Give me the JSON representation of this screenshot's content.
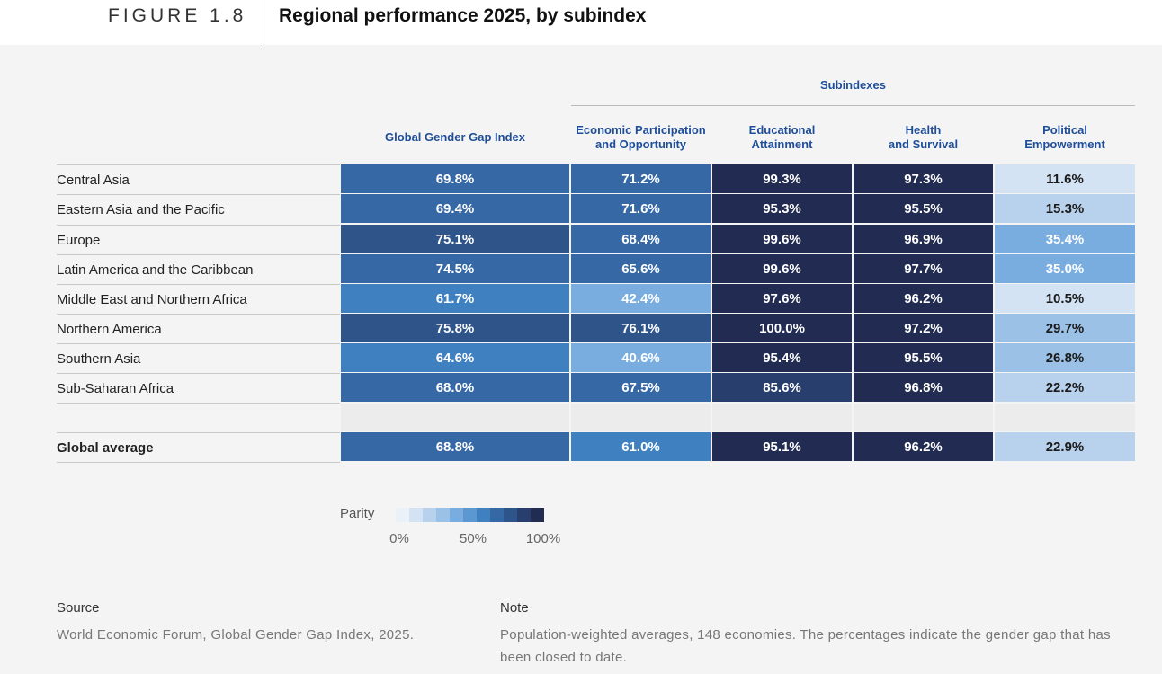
{
  "figure": {
    "label": "FIGURE 1.8",
    "title": "Regional performance 2025, by subindex"
  },
  "subindexes_label": "Subindexes",
  "chart_data": {
    "type": "table",
    "columns": [
      "Global Gender Gap Index",
      "Economic Participation\nand Opportunity",
      "Educational\nAttainment",
      "Health\nand Survival",
      "Political\nEmpowerment"
    ],
    "rows": [
      {
        "label": "Central Asia",
        "values": [
          69.8,
          71.2,
          99.3,
          97.3,
          11.6
        ]
      },
      {
        "label": "Eastern Asia and the Pacific",
        "values": [
          69.4,
          71.6,
          95.3,
          95.5,
          15.3
        ]
      },
      {
        "label": "Europe",
        "values": [
          75.1,
          68.4,
          99.6,
          96.9,
          35.4
        ]
      },
      {
        "label": "Latin America and the Caribbean",
        "values": [
          74.5,
          65.6,
          99.6,
          97.7,
          35.0
        ]
      },
      {
        "label": "Middle East and Northern Africa",
        "values": [
          61.7,
          42.4,
          97.6,
          96.2,
          10.5
        ]
      },
      {
        "label": "Northern America",
        "values": [
          75.8,
          76.1,
          100.0,
          97.2,
          29.7
        ]
      },
      {
        "label": "Southern Asia",
        "values": [
          64.6,
          40.6,
          95.4,
          95.5,
          26.8
        ]
      },
      {
        "label": "Sub-Saharan Africa",
        "values": [
          68.0,
          67.5,
          85.6,
          96.8,
          22.2
        ]
      }
    ],
    "summary_row": {
      "label": "Global average",
      "values": [
        68.8,
        61.0,
        95.1,
        96.2,
        22.9
      ]
    },
    "value_format": "percent",
    "color_scale": {
      "title": "Parity",
      "ticks": [
        "0%",
        "50%",
        "100%"
      ],
      "colors": [
        "#ebf1f9",
        "#d3e3f4",
        "#b8d2ee",
        "#9bc1e6",
        "#79addf",
        "#5b97d1",
        "#3f80c0",
        "#3668a6",
        "#2e5489",
        "#283f6d",
        "#222c52"
      ]
    }
  },
  "source": {
    "heading": "Source",
    "text": "World Economic Forum, Global Gender Gap Index, 2025."
  },
  "note": {
    "heading": "Note",
    "text": "Population-weighted averages, 148 economies. The percentages indicate the gender gap that has been closed to date."
  }
}
